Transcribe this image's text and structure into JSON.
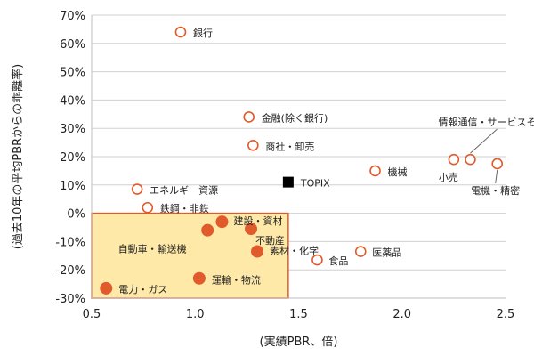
{
  "chart_data": {
    "type": "scatter",
    "xlabel": "(実績PBR、倍)",
    "ylabel": "(過去10年の平均PBRからの乖離率)",
    "xlim": [
      0.5,
      2.5
    ],
    "ylim": [
      -30,
      70
    ],
    "x_ticks": [
      "0.5",
      "1.0",
      "1.5",
      "2.0",
      "2.5"
    ],
    "y_ticks": [
      "-30%",
      "-20%",
      "-10%",
      "0%",
      "10%",
      "20%",
      "30%",
      "40%",
      "50%",
      "60%",
      "70%"
    ],
    "grid": "horizontal",
    "colors": {
      "marker": "#e05a2b",
      "highlight_fill": "#ffe9a8",
      "highlight_border": "#e05a2b",
      "topix": "#000000"
    },
    "highlight_region": {
      "x": [
        0.5,
        1.45
      ],
      "y": [
        -30,
        0
      ]
    },
    "points": [
      {
        "name": "銀行",
        "x": 0.93,
        "y": 64,
        "style": "open"
      },
      {
        "name": "金融(除く銀行)",
        "x": 1.26,
        "y": 34,
        "style": "open"
      },
      {
        "name": "商社・卸売",
        "x": 1.28,
        "y": 24,
        "style": "open"
      },
      {
        "name": "機械",
        "x": 1.87,
        "y": 15,
        "style": "open"
      },
      {
        "name": "情報通信・サービスその他",
        "x": 2.33,
        "y": 19,
        "style": "open"
      },
      {
        "name": "小売",
        "x": 2.25,
        "y": 19,
        "style": "open"
      },
      {
        "name": "電機・精密",
        "x": 2.46,
        "y": 17.5,
        "style": "open"
      },
      {
        "name": "エネルギー資源",
        "x": 0.72,
        "y": 8.5,
        "style": "open"
      },
      {
        "name": "鉄鋼・非鉄",
        "x": 0.77,
        "y": 2,
        "style": "open"
      },
      {
        "name": "TOPIX",
        "x": 1.45,
        "y": 11,
        "style": "square"
      },
      {
        "name": "医薬品",
        "x": 1.8,
        "y": -13.5,
        "style": "open"
      },
      {
        "name": "食品",
        "x": 1.59,
        "y": -16.5,
        "style": "open"
      },
      {
        "name": "建設・資材",
        "x": 1.13,
        "y": -3,
        "style": "filled"
      },
      {
        "name": "不動産",
        "x": 1.27,
        "y": -5.5,
        "style": "filled"
      },
      {
        "name": "自動車・輸送機",
        "x": 1.06,
        "y": -6,
        "style": "filled"
      },
      {
        "name": "素材・化学",
        "x": 1.3,
        "y": -13.5,
        "style": "filled"
      },
      {
        "name": "運輸・物流",
        "x": 1.02,
        "y": -23,
        "style": "filled"
      },
      {
        "name": "電力・ガス",
        "x": 0.57,
        "y": -26.5,
        "style": "filled"
      }
    ]
  }
}
